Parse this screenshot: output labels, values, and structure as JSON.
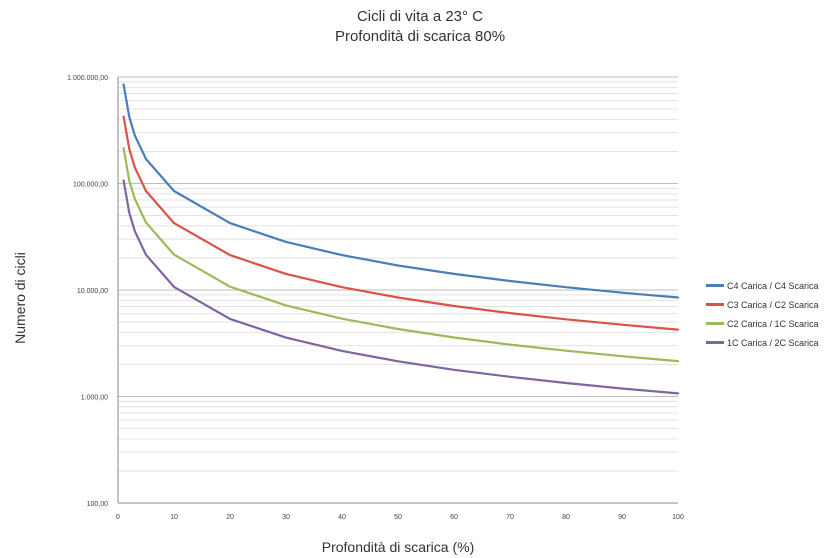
{
  "chart_data": {
    "type": "line",
    "title": "Cicli di vita a 23° C",
    "subtitle": "Profondità di scarica 80%",
    "xlabel": "Profondità di scarica (%)",
    "ylabel": "Numero di cicli",
    "y_scale": "log",
    "xlim": [
      0,
      100
    ],
    "ylim": [
      100,
      1000000
    ],
    "x_ticks": [
      "0",
      "10",
      "20",
      "30",
      "40",
      "50",
      "60",
      "70",
      "80",
      "90",
      "100"
    ],
    "y_ticks": [
      "100,00",
      "1.000,00",
      "10.000,00",
      "100.000,00",
      "1.000.000,00"
    ],
    "grid": "horizontal (major and minor)",
    "legend_position": "right",
    "x": [
      1,
      2,
      3,
      5,
      10,
      20,
      30,
      40,
      50,
      60,
      70,
      80,
      90,
      100
    ],
    "series": [
      {
        "name": "C4 Carica / C4 Scarica",
        "color": "#4a7ebb",
        "values": [
          850000,
          425000,
          283000,
          170000,
          85000,
          42500,
          28300,
          21250,
          17000,
          14170,
          12140,
          10630,
          9440,
          8500
        ]
      },
      {
        "name": "C3 Carica / C2 Scarica",
        "color": "#d9534a",
        "values": [
          425000,
          212500,
          141700,
          85000,
          42500,
          21250,
          14170,
          10630,
          8500,
          7080,
          6070,
          5310,
          4720,
          4250
        ]
      },
      {
        "name": "C2 Carica / 1C Scarica",
        "color": "#9bbb59",
        "values": [
          215000,
          107500,
          71700,
          43000,
          21500,
          10750,
          7170,
          5380,
          4300,
          3580,
          3070,
          2690,
          2390,
          2150
        ]
      },
      {
        "name": "1C Carica / 2C Scarica",
        "color": "#8064a2",
        "values": [
          107000,
          53500,
          35700,
          21400,
          10700,
          5350,
          3570,
          2680,
          2140,
          1780,
          1530,
          1340,
          1190,
          1070
        ]
      }
    ]
  }
}
